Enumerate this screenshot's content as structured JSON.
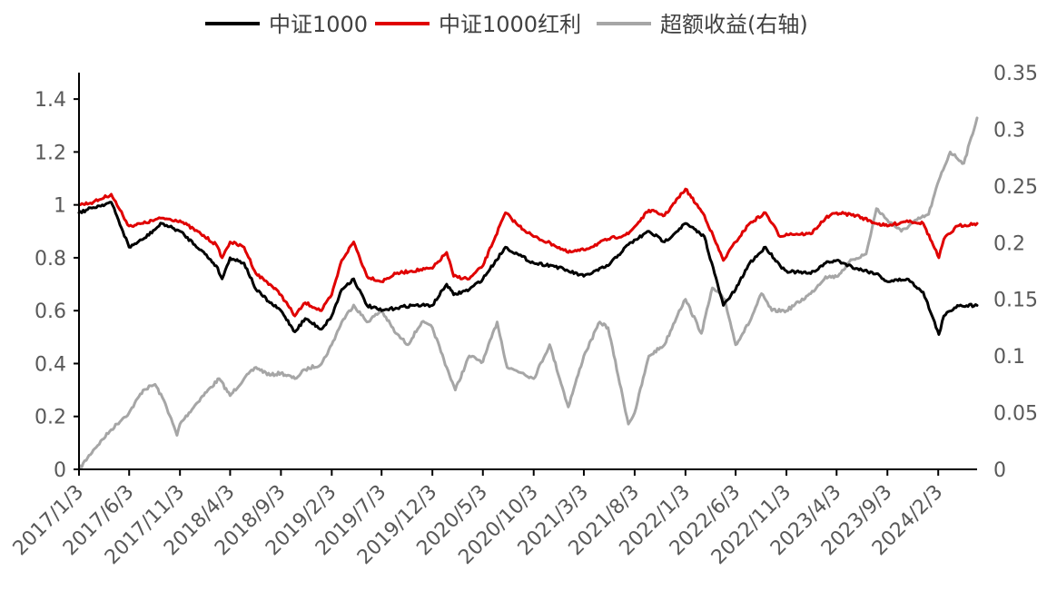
{
  "chart_data": {
    "type": "line",
    "legend_position": "top-center",
    "grid": false,
    "x_ticks": [
      "2017/1/3",
      "2017/6/3",
      "2017/11/3",
      "2018/4/3",
      "2018/9/3",
      "2019/2/3",
      "2019/7/3",
      "2019/12/3",
      "2020/5/3",
      "2020/10/3",
      "2021/3/3",
      "2021/8/3",
      "2022/1/3",
      "2022/6/3",
      "2022/11/3",
      "2023/4/3",
      "2023/9/3",
      "2024/2/3"
    ],
    "x_range": [
      "2017/1/3",
      "2024/5/30"
    ],
    "y_left": {
      "min": 0,
      "max": 1.5,
      "ticks": [
        "0",
        "0.2",
        "0.4",
        "0.6",
        "0.8",
        "1",
        "1.2",
        "1.4"
      ]
    },
    "y_right": {
      "min": 0,
      "max": 0.35,
      "ticks": [
        "0",
        "0.05",
        "0.1",
        "0.15",
        "0.2",
        "0.25",
        "0.3",
        "0.35"
      ]
    },
    "series": [
      {
        "name": "中证1000",
        "color": "#000000",
        "axis": "left",
        "points": [
          [
            "2017/1/3",
            0.97
          ],
          [
            "2017/2/15",
            0.99
          ],
          [
            "2017/4/10",
            1.01
          ],
          [
            "2017/5/15",
            0.9
          ],
          [
            "2017/6/3",
            0.84
          ],
          [
            "2017/7/15",
            0.87
          ],
          [
            "2017/9/10",
            0.93
          ],
          [
            "2017/11/3",
            0.9
          ],
          [
            "2018/1/5",
            0.83
          ],
          [
            "2018/2/20",
            0.77
          ],
          [
            "2018/3/10",
            0.72
          ],
          [
            "2018/4/3",
            0.8
          ],
          [
            "2018/5/15",
            0.78
          ],
          [
            "2018/6/20",
            0.68
          ],
          [
            "2018/8/1",
            0.63
          ],
          [
            "2018/9/3",
            0.6
          ],
          [
            "2018/10/15",
            0.52
          ],
          [
            "2018/11/15",
            0.57
          ],
          [
            "2019/1/3",
            0.53
          ],
          [
            "2019/2/3",
            0.58
          ],
          [
            "2019/3/5",
            0.68
          ],
          [
            "2019/4/10",
            0.72
          ],
          [
            "2019/5/20",
            0.62
          ],
          [
            "2019/7/3",
            0.6
          ],
          [
            "2019/8/15",
            0.61
          ],
          [
            "2019/10/1",
            0.62
          ],
          [
            "2019/12/3",
            0.62
          ],
          [
            "2020/1/15",
            0.7
          ],
          [
            "2020/2/5",
            0.66
          ],
          [
            "2020/3/23",
            0.68
          ],
          [
            "2020/5/3",
            0.72
          ],
          [
            "2020/7/10",
            0.84
          ],
          [
            "2020/8/20",
            0.81
          ],
          [
            "2020/10/3",
            0.78
          ],
          [
            "2020/12/1",
            0.77
          ],
          [
            "2021/1/15",
            0.75
          ],
          [
            "2021/3/3",
            0.73
          ],
          [
            "2021/5/15",
            0.77
          ],
          [
            "2021/7/15",
            0.85
          ],
          [
            "2021/9/15",
            0.9
          ],
          [
            "2021/11/1",
            0.86
          ],
          [
            "2022/1/3",
            0.93
          ],
          [
            "2022/3/1",
            0.88
          ],
          [
            "2022/4/27",
            0.62
          ],
          [
            "2022/6/3",
            0.68
          ],
          [
            "2022/7/15",
            0.78
          ],
          [
            "2022/9/1",
            0.84
          ],
          [
            "2022/10/15",
            0.77
          ],
          [
            "2022/11/3",
            0.75
          ],
          [
            "2023/1/15",
            0.74
          ],
          [
            "2023/3/1",
            0.78
          ],
          [
            "2023/4/3",
            0.79
          ],
          [
            "2023/6/1",
            0.76
          ],
          [
            "2023/8/1",
            0.74
          ],
          [
            "2023/9/3",
            0.71
          ],
          [
            "2023/11/1",
            0.72
          ],
          [
            "2023/12/20",
            0.67
          ],
          [
            "2024/2/5",
            0.51
          ],
          [
            "2024/2/20",
            0.58
          ],
          [
            "2024/4/1",
            0.62
          ],
          [
            "2024/5/30",
            0.62
          ]
        ]
      },
      {
        "name": "中证1000红利",
        "color": "#e00000",
        "axis": "left",
        "points": [
          [
            "2017/1/3",
            1.0
          ],
          [
            "2017/2/15",
            1.01
          ],
          [
            "2017/4/10",
            1.04
          ],
          [
            "2017/5/15",
            0.96
          ],
          [
            "2017/6/3",
            0.92
          ],
          [
            "2017/7/15",
            0.93
          ],
          [
            "2017/9/10",
            0.95
          ],
          [
            "2017/11/3",
            0.94
          ],
          [
            "2018/1/5",
            0.89
          ],
          [
            "2018/2/20",
            0.85
          ],
          [
            "2018/3/10",
            0.8
          ],
          [
            "2018/4/3",
            0.86
          ],
          [
            "2018/5/15",
            0.84
          ],
          [
            "2018/6/20",
            0.74
          ],
          [
            "2018/8/1",
            0.7
          ],
          [
            "2018/9/3",
            0.66
          ],
          [
            "2018/10/15",
            0.58
          ],
          [
            "2018/11/15",
            0.63
          ],
          [
            "2019/1/3",
            0.6
          ],
          [
            "2019/2/3",
            0.66
          ],
          [
            "2019/3/5",
            0.79
          ],
          [
            "2019/4/10",
            0.86
          ],
          [
            "2019/5/20",
            0.73
          ],
          [
            "2019/7/3",
            0.71
          ],
          [
            "2019/8/15",
            0.74
          ],
          [
            "2019/10/1",
            0.75
          ],
          [
            "2019/12/3",
            0.76
          ],
          [
            "2020/1/15",
            0.82
          ],
          [
            "2020/2/5",
            0.73
          ],
          [
            "2020/3/23",
            0.72
          ],
          [
            "2020/5/3",
            0.77
          ],
          [
            "2020/7/10",
            0.97
          ],
          [
            "2020/8/20",
            0.92
          ],
          [
            "2020/10/3",
            0.88
          ],
          [
            "2020/12/1",
            0.85
          ],
          [
            "2021/1/15",
            0.82
          ],
          [
            "2021/3/3",
            0.83
          ],
          [
            "2021/5/15",
            0.87
          ],
          [
            "2021/7/15",
            0.89
          ],
          [
            "2021/9/15",
            0.98
          ],
          [
            "2021/11/1",
            0.96
          ],
          [
            "2022/1/3",
            1.06
          ],
          [
            "2022/3/1",
            0.96
          ],
          [
            "2022/4/27",
            0.79
          ],
          [
            "2022/6/3",
            0.86
          ],
          [
            "2022/7/15",
            0.93
          ],
          [
            "2022/9/1",
            0.97
          ],
          [
            "2022/10/15",
            0.88
          ],
          [
            "2022/11/3",
            0.89
          ],
          [
            "2023/1/15",
            0.89
          ],
          [
            "2023/3/1",
            0.95
          ],
          [
            "2023/4/3",
            0.97
          ],
          [
            "2023/6/1",
            0.96
          ],
          [
            "2023/8/1",
            0.93
          ],
          [
            "2023/9/3",
            0.92
          ],
          [
            "2023/11/1",
            0.94
          ],
          [
            "2023/12/20",
            0.93
          ],
          [
            "2024/2/5",
            0.8
          ],
          [
            "2024/2/20",
            0.87
          ],
          [
            "2024/4/1",
            0.92
          ],
          [
            "2024/5/30",
            0.93
          ]
        ]
      },
      {
        "name": "超额收益(右轴)",
        "color": "#a6a6a6",
        "axis": "right",
        "points": [
          [
            "2017/1/3",
            0.0
          ],
          [
            "2017/2/15",
            0.017
          ],
          [
            "2017/4/10",
            0.035
          ],
          [
            "2017/5/15",
            0.045
          ],
          [
            "2017/6/3",
            0.05
          ],
          [
            "2017/7/15",
            0.07
          ],
          [
            "2017/8/20",
            0.075
          ],
          [
            "2017/9/20",
            0.058
          ],
          [
            "2017/10/25",
            0.03
          ],
          [
            "2017/11/3",
            0.04
          ],
          [
            "2018/1/5",
            0.063
          ],
          [
            "2018/3/1",
            0.08
          ],
          [
            "2018/4/3",
            0.065
          ],
          [
            "2018/5/15",
            0.08
          ],
          [
            "2018/6/20",
            0.09
          ],
          [
            "2018/8/1",
            0.083
          ],
          [
            "2018/9/3",
            0.085
          ],
          [
            "2018/10/15",
            0.08
          ],
          [
            "2018/11/15",
            0.088
          ],
          [
            "2019/1/3",
            0.093
          ],
          [
            "2019/2/3",
            0.11
          ],
          [
            "2019/3/5",
            0.13
          ],
          [
            "2019/4/10",
            0.145
          ],
          [
            "2019/5/20",
            0.13
          ],
          [
            "2019/7/3",
            0.14
          ],
          [
            "2019/8/15",
            0.12
          ],
          [
            "2019/9/20",
            0.11
          ],
          [
            "2019/11/1",
            0.13
          ],
          [
            "2019/12/3",
            0.125
          ],
          [
            "2020/1/15",
            0.09
          ],
          [
            "2020/2/10",
            0.07
          ],
          [
            "2020/3/23",
            0.1
          ],
          [
            "2020/5/3",
            0.095
          ],
          [
            "2020/6/15",
            0.13
          ],
          [
            "2020/7/15",
            0.09
          ],
          [
            "2020/9/1",
            0.085
          ],
          [
            "2020/10/3",
            0.08
          ],
          [
            "2020/11/20",
            0.11
          ],
          [
            "2021/1/15",
            0.055
          ],
          [
            "2021/3/3",
            0.1
          ],
          [
            "2021/4/20",
            0.13
          ],
          [
            "2021/5/15",
            0.125
          ],
          [
            "2021/7/15",
            0.04
          ],
          [
            "2021/8/3",
            0.05
          ],
          [
            "2021/9/15",
            0.1
          ],
          [
            "2021/11/1",
            0.11
          ],
          [
            "2021/12/15",
            0.14
          ],
          [
            "2022/1/3",
            0.15
          ],
          [
            "2022/2/20",
            0.12
          ],
          [
            "2022/3/25",
            0.16
          ],
          [
            "2022/5/1",
            0.15
          ],
          [
            "2022/6/3",
            0.11
          ],
          [
            "2022/7/15",
            0.13
          ],
          [
            "2022/8/20",
            0.155
          ],
          [
            "2022/9/20",
            0.14
          ],
          [
            "2022/11/3",
            0.14
          ],
          [
            "2023/1/15",
            0.155
          ],
          [
            "2023/3/1",
            0.17
          ],
          [
            "2023/4/3",
            0.17
          ],
          [
            "2023/5/20",
            0.185
          ],
          [
            "2023/7/1",
            0.19
          ],
          [
            "2023/8/1",
            0.23
          ],
          [
            "2023/9/3",
            0.22
          ],
          [
            "2023/10/15",
            0.21
          ],
          [
            "2023/12/1",
            0.22
          ],
          [
            "2024/1/5",
            0.225
          ],
          [
            "2024/2/5",
            0.255
          ],
          [
            "2024/3/10",
            0.28
          ],
          [
            "2024/4/20",
            0.27
          ],
          [
            "2024/5/30",
            0.31
          ]
        ]
      }
    ]
  },
  "legend": [
    {
      "label": "中证1000",
      "color": "#000000"
    },
    {
      "label": "中证1000红利",
      "color": "#e00000"
    },
    {
      "label": "超额收益(右轴)",
      "color": "#a6a6a6"
    }
  ]
}
